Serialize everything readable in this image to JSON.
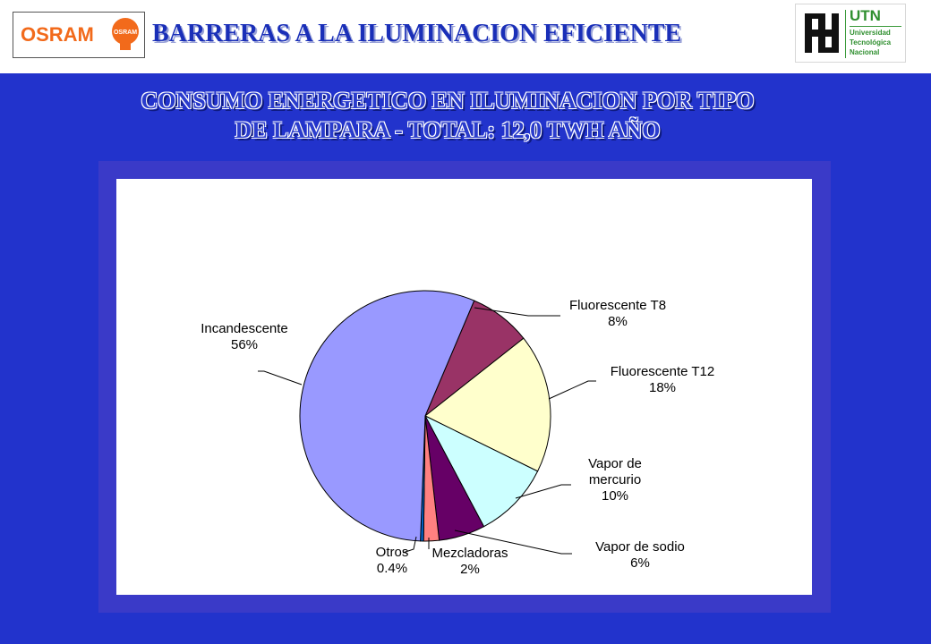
{
  "header": {
    "title": "BARRERAS A LA ILUMINACION EFICIENTE",
    "osram_logo_text": "OSRAM",
    "osram_bulb_text": "OSRAM",
    "utn": {
      "abbr": "UTN",
      "line1": "Universidad",
      "line2": "Tecnológica",
      "line3": "Nacional"
    }
  },
  "subtitle": {
    "line1": "CONSUMO ENERGETICO EN ILUMINACION POR TIPO",
    "line2": "DE LAMPARA - TOTAL: 12,0 TWH AÑO"
  },
  "chart_data": {
    "type": "pie",
    "title": "",
    "slices": [
      {
        "label": "Fluorescente T8",
        "value": 8,
        "value_label": "8%",
        "color": "#993366"
      },
      {
        "label": "Fluorescente T12",
        "value": 18,
        "value_label": "18%",
        "color": "#ffffcc"
      },
      {
        "label": "Vapor de mercurio",
        "label_lines": [
          "Vapor de",
          "mercurio"
        ],
        "value": 10,
        "value_label": "10%",
        "color": "#ccffff"
      },
      {
        "label": "Vapor de sodio",
        "value": 6,
        "value_label": "6%",
        "color": "#660066"
      },
      {
        "label": "Mezcladoras",
        "value": 2,
        "value_label": "2%",
        "color": "#ff8080"
      },
      {
        "label": "Otros",
        "value": 0.4,
        "value_label": "0.4%",
        "color": "#0066cc"
      },
      {
        "label": "Incandescente",
        "value": 56,
        "value_label": "56%",
        "color": "#9999ff"
      }
    ],
    "start_angle_deg": 23,
    "direction": "clockwise",
    "legend": "none",
    "colors": {
      "outline": "#000000",
      "background": "#ffffff",
      "frame": "#3a3ac8"
    }
  }
}
